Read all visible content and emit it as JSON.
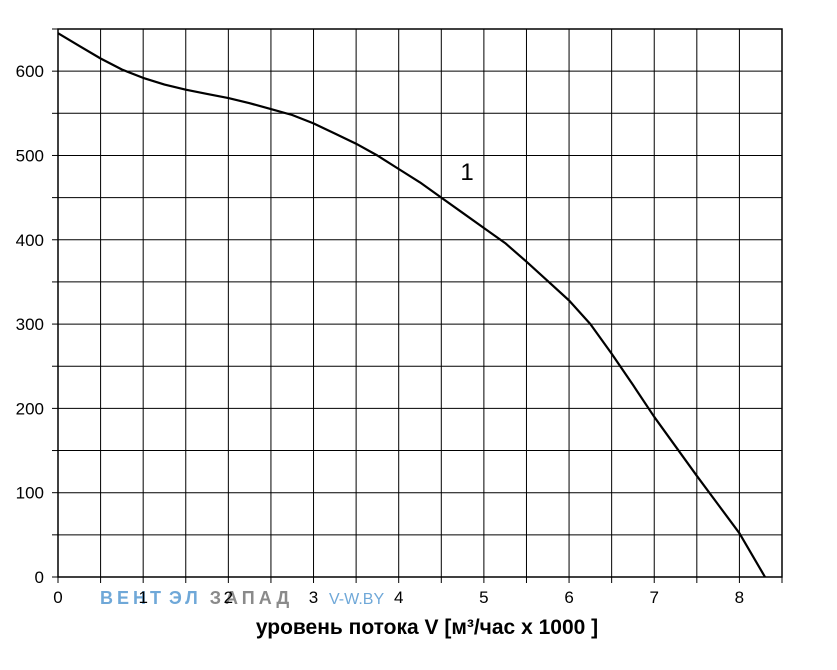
{
  "chart_data": {
    "type": "line",
    "title": "",
    "xlabel": "уровень потока  V [м³/час x 1000 ]",
    "ylabel": "",
    "xlim": [
      0,
      8.5
    ],
    "ylim": [
      0,
      650
    ],
    "x_ticks": [
      "0",
      "1",
      "2",
      "3",
      "4",
      "5",
      "6",
      "7",
      "8"
    ],
    "y_ticks": [
      "0",
      "100",
      "200",
      "300",
      "400",
      "500",
      "600"
    ],
    "grid": true,
    "grid_x_step": 0.5,
    "grid_y_step": 50,
    "series": [
      {
        "name": "1",
        "color": "#000000",
        "x": [
          0,
          0.25,
          0.5,
          0.75,
          1.0,
          1.25,
          1.5,
          1.75,
          2.0,
          2.25,
          2.5,
          2.75,
          3.0,
          3.25,
          3.5,
          3.75,
          4.0,
          4.25,
          4.5,
          4.75,
          5.0,
          5.25,
          5.5,
          5.75,
          6.0,
          6.25,
          6.5,
          6.75,
          7.0,
          7.25,
          7.5,
          7.75,
          8.0,
          8.3
        ],
        "y": [
          645,
          630,
          615,
          602,
          592,
          584,
          578,
          573,
          568,
          562,
          555,
          548,
          538,
          526,
          514,
          500,
          484,
          468,
          450,
          432,
          414,
          396,
          374,
          351,
          328,
          300,
          265,
          228,
          190,
          155,
          120,
          86,
          52,
          0
        ]
      }
    ],
    "annotations": [
      {
        "text": "1",
        "x": 4.7,
        "y": 466
      }
    ]
  },
  "watermark": {
    "brand_a": "ВЕНТ",
    "brand_b": "ЭЛ",
    "brand_c": "ЗАПАД",
    "url": "V-W.BY",
    "color_blue": "#6fa8d8",
    "color_gray": "#8a8a8a"
  }
}
